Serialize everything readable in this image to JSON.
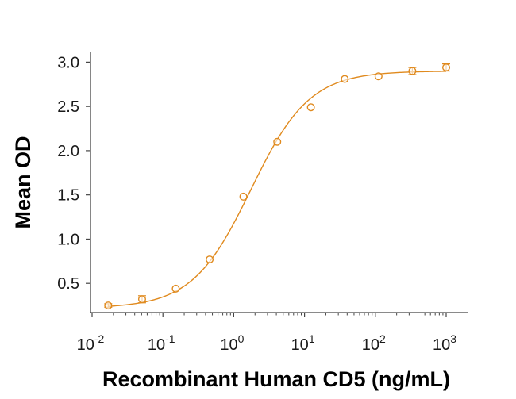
{
  "chart_data": {
    "type": "scatter",
    "title": "",
    "xlabel": "Recombinant Human CD5 (ng/mL)",
    "ylabel": "Mean OD",
    "xscale": "log",
    "xlim": [
      0.01,
      1000
    ],
    "ylim": [
      0.17,
      3.12
    ],
    "x_ticks": [
      {
        "value": 0.01,
        "base": "10",
        "exp": "-2"
      },
      {
        "value": 0.1,
        "base": "10",
        "exp": "-1"
      },
      {
        "value": 1,
        "base": "10",
        "exp": "0"
      },
      {
        "value": 10,
        "base": "10",
        "exp": "1"
      },
      {
        "value": 100,
        "base": "10",
        "exp": "2"
      },
      {
        "value": 1000,
        "base": "10",
        "exp": "3"
      }
    ],
    "y_ticks": [
      {
        "value": 0.5,
        "label": "0.5"
      },
      {
        "value": 1.0,
        "label": "1.0"
      },
      {
        "value": 1.5,
        "label": "1.5"
      },
      {
        "value": 2.0,
        "label": "2.0"
      },
      {
        "value": 2.5,
        "label": "2.5"
      },
      {
        "value": 3.0,
        "label": "3.0"
      }
    ],
    "grid": false,
    "legend": "none",
    "series": [
      {
        "name": "Mean OD",
        "color": "#E08A1E",
        "marker": "open-circle",
        "points": [
          {
            "x": 0.0169,
            "y": 0.25,
            "err": 0.02
          },
          {
            "x": 0.0508,
            "y": 0.32,
            "err": 0.04
          },
          {
            "x": 0.152,
            "y": 0.44,
            "err": 0.0
          },
          {
            "x": 0.457,
            "y": 0.77,
            "err": 0.0
          },
          {
            "x": 1.37,
            "y": 1.48,
            "err": 0.0
          },
          {
            "x": 4.12,
            "y": 2.1,
            "err": 0.0
          },
          {
            "x": 12.3,
            "y": 2.49,
            "err": 0.0
          },
          {
            "x": 37.0,
            "y": 2.81,
            "err": 0.0
          },
          {
            "x": 111,
            "y": 2.84,
            "err": 0.0
          },
          {
            "x": 333,
            "y": 2.9,
            "err": 0.04
          },
          {
            "x": 1000,
            "y": 2.94,
            "err": 0.04
          }
        ]
      }
    ],
    "fit": {
      "type": "4PL",
      "bottom": 0.22,
      "top": 2.9,
      "ec50": 1.75,
      "hill": 1.05,
      "color": "#E08A1E"
    }
  }
}
